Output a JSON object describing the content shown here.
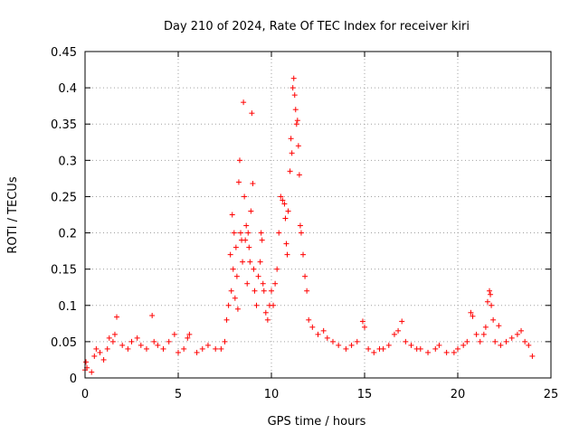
{
  "chart_data": {
    "type": "scatter",
    "title": "Day 210 of 2024, Rate Of TEC Index for receiver kiri",
    "xlabel": "GPS time / hours",
    "ylabel": "ROTI / TECUs",
    "xlim": [
      0,
      25
    ],
    "ylim": [
      0,
      0.45
    ],
    "xticks": [
      "0",
      "5",
      "10",
      "15",
      "20",
      "25"
    ],
    "yticks": [
      "0",
      "0.05",
      "0.1",
      "0.15",
      "0.2",
      "0.25",
      "0.3",
      "0.35",
      "0.4",
      "0.45"
    ],
    "grid": true,
    "marker": "+",
    "marker_color": "#ff0000",
    "series": [
      {
        "name": "ROTI",
        "points": [
          [
            0.0,
            0.011
          ],
          [
            0.05,
            0.022
          ],
          [
            0.1,
            0.014
          ],
          [
            0.35,
            0.008
          ],
          [
            0.5,
            0.03
          ],
          [
            0.6,
            0.04
          ],
          [
            0.8,
            0.035
          ],
          [
            1.0,
            0.025
          ],
          [
            1.2,
            0.04
          ],
          [
            1.3,
            0.055
          ],
          [
            1.5,
            0.05
          ],
          [
            1.6,
            0.06
          ],
          [
            1.7,
            0.084
          ],
          [
            2.0,
            0.045
          ],
          [
            2.3,
            0.04
          ],
          [
            2.5,
            0.05
          ],
          [
            2.8,
            0.055
          ],
          [
            3.0,
            0.045
          ],
          [
            3.3,
            0.04
          ],
          [
            3.6,
            0.086
          ],
          [
            3.7,
            0.05
          ],
          [
            3.9,
            0.045
          ],
          [
            4.2,
            0.04
          ],
          [
            4.5,
            0.05
          ],
          [
            4.8,
            0.06
          ],
          [
            5.0,
            0.035
          ],
          [
            5.3,
            0.04
          ],
          [
            5.5,
            0.055
          ],
          [
            5.6,
            0.06
          ],
          [
            6.0,
            0.035
          ],
          [
            6.3,
            0.04
          ],
          [
            6.6,
            0.045
          ],
          [
            7.0,
            0.04
          ],
          [
            7.3,
            0.04
          ],
          [
            7.5,
            0.05
          ],
          [
            7.6,
            0.08
          ],
          [
            7.7,
            0.1
          ],
          [
            7.8,
            0.17
          ],
          [
            7.85,
            0.12
          ],
          [
            7.9,
            0.225
          ],
          [
            7.95,
            0.15
          ],
          [
            8.0,
            0.2
          ],
          [
            8.05,
            0.11
          ],
          [
            8.1,
            0.18
          ],
          [
            8.15,
            0.14
          ],
          [
            8.2,
            0.095
          ],
          [
            8.25,
            0.27
          ],
          [
            8.3,
            0.3
          ],
          [
            8.35,
            0.2
          ],
          [
            8.4,
            0.19
          ],
          [
            8.45,
            0.16
          ],
          [
            8.5,
            0.38
          ],
          [
            8.55,
            0.25
          ],
          [
            8.6,
            0.19
          ],
          [
            8.65,
            0.21
          ],
          [
            8.7,
            0.13
          ],
          [
            8.75,
            0.2
          ],
          [
            8.8,
            0.18
          ],
          [
            8.85,
            0.16
          ],
          [
            8.9,
            0.23
          ],
          [
            8.95,
            0.365
          ],
          [
            9.0,
            0.268
          ],
          [
            9.05,
            0.15
          ],
          [
            9.1,
            0.12
          ],
          [
            9.2,
            0.1
          ],
          [
            9.3,
            0.14
          ],
          [
            9.4,
            0.16
          ],
          [
            9.45,
            0.2
          ],
          [
            9.5,
            0.19
          ],
          [
            9.55,
            0.13
          ],
          [
            9.6,
            0.12
          ],
          [
            9.7,
            0.09
          ],
          [
            9.8,
            0.08
          ],
          [
            9.9,
            0.1
          ],
          [
            10.0,
            0.12
          ],
          [
            10.1,
            0.1
          ],
          [
            10.2,
            0.13
          ],
          [
            10.3,
            0.15
          ],
          [
            10.4,
            0.2
          ],
          [
            10.5,
            0.25
          ],
          [
            10.6,
            0.245
          ],
          [
            10.7,
            0.24
          ],
          [
            10.75,
            0.22
          ],
          [
            10.8,
            0.185
          ],
          [
            10.85,
            0.17
          ],
          [
            10.9,
            0.23
          ],
          [
            11.0,
            0.285
          ],
          [
            11.05,
            0.33
          ],
          [
            11.1,
            0.31
          ],
          [
            11.15,
            0.4
          ],
          [
            11.2,
            0.413
          ],
          [
            11.25,
            0.39
          ],
          [
            11.3,
            0.37
          ],
          [
            11.35,
            0.35
          ],
          [
            11.4,
            0.355
          ],
          [
            11.45,
            0.32
          ],
          [
            11.5,
            0.28
          ],
          [
            11.55,
            0.21
          ],
          [
            11.6,
            0.2
          ],
          [
            11.7,
            0.17
          ],
          [
            11.8,
            0.14
          ],
          [
            11.9,
            0.12
          ],
          [
            12.0,
            0.08
          ],
          [
            12.2,
            0.07
          ],
          [
            12.5,
            0.06
          ],
          [
            12.8,
            0.065
          ],
          [
            13.0,
            0.055
          ],
          [
            13.3,
            0.05
          ],
          [
            13.6,
            0.045
          ],
          [
            14.0,
            0.04
          ],
          [
            14.3,
            0.045
          ],
          [
            14.6,
            0.05
          ],
          [
            14.9,
            0.078
          ],
          [
            15.0,
            0.07
          ],
          [
            15.2,
            0.04
          ],
          [
            15.5,
            0.035
          ],
          [
            15.8,
            0.04
          ],
          [
            16.0,
            0.04
          ],
          [
            16.3,
            0.045
          ],
          [
            16.6,
            0.06
          ],
          [
            16.8,
            0.065
          ],
          [
            17.0,
            0.078
          ],
          [
            17.2,
            0.05
          ],
          [
            17.5,
            0.045
          ],
          [
            17.8,
            0.04
          ],
          [
            18.0,
            0.04
          ],
          [
            18.4,
            0.035
          ],
          [
            18.8,
            0.04
          ],
          [
            19.0,
            0.045
          ],
          [
            19.4,
            0.035
          ],
          [
            19.8,
            0.035
          ],
          [
            20.0,
            0.04
          ],
          [
            20.3,
            0.045
          ],
          [
            20.5,
            0.05
          ],
          [
            20.7,
            0.09
          ],
          [
            20.8,
            0.085
          ],
          [
            21.0,
            0.06
          ],
          [
            21.2,
            0.05
          ],
          [
            21.4,
            0.06
          ],
          [
            21.5,
            0.07
          ],
          [
            21.6,
            0.105
          ],
          [
            21.7,
            0.12
          ],
          [
            21.75,
            0.115
          ],
          [
            21.8,
            0.1
          ],
          [
            21.9,
            0.08
          ],
          [
            22.0,
            0.05
          ],
          [
            22.2,
            0.072
          ],
          [
            22.3,
            0.045
          ],
          [
            22.6,
            0.05
          ],
          [
            22.9,
            0.055
          ],
          [
            23.2,
            0.06
          ],
          [
            23.4,
            0.065
          ],
          [
            23.6,
            0.05
          ],
          [
            23.8,
            0.045
          ],
          [
            24.0,
            0.03
          ]
        ]
      }
    ]
  }
}
